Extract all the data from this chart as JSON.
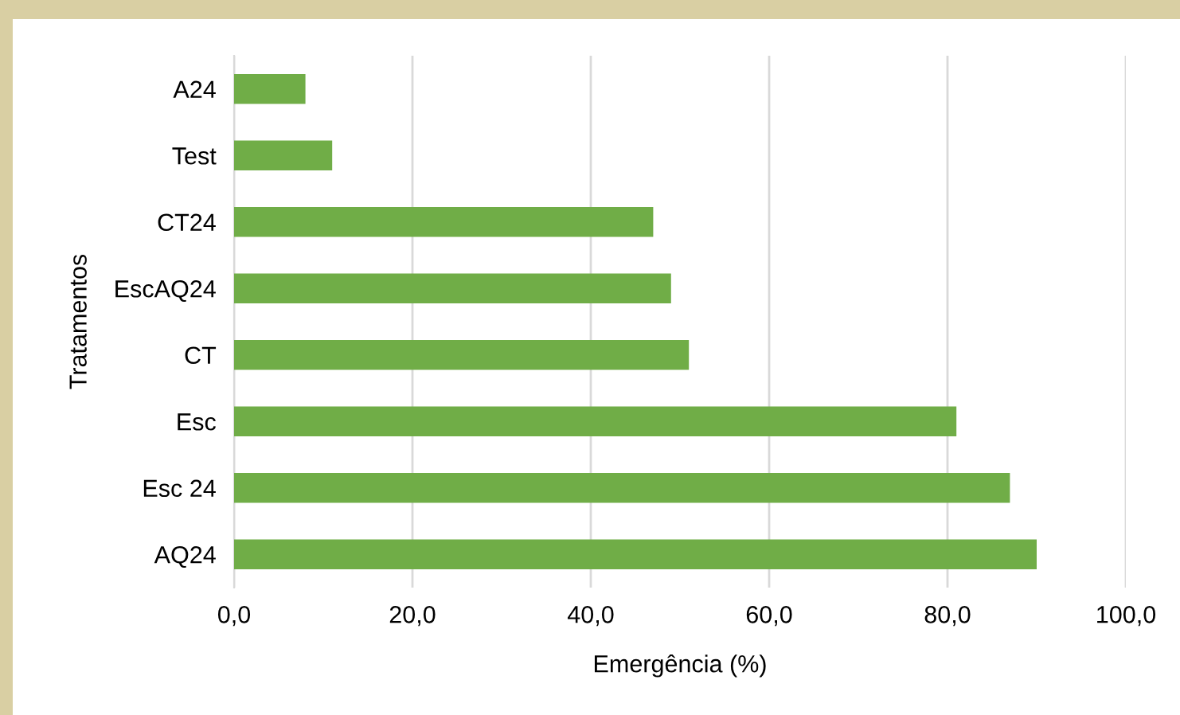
{
  "chart_data": {
    "type": "bar",
    "orientation": "horizontal",
    "categories": [
      "A24",
      "Test",
      "CT24",
      "EscAQ24",
      "CT",
      "Esc",
      "Esc 24",
      "AQ24"
    ],
    "values": [
      8,
      11,
      47,
      49,
      51,
      81,
      87,
      90
    ],
    "color": "#70ad47",
    "xlabel": "Emergência (%)",
    "ylabel": "Tratamentos",
    "xlim": [
      0,
      100
    ],
    "xticks": [
      {
        "value": 0,
        "label": "0,0"
      },
      {
        "value": 20,
        "label": "20,0"
      },
      {
        "value": 40,
        "label": "40,0"
      },
      {
        "value": 60,
        "label": "60,0"
      },
      {
        "value": 80,
        "label": "80,0"
      },
      {
        "value": 100,
        "label": "100,0"
      }
    ],
    "grid": "x",
    "legend": false
  }
}
